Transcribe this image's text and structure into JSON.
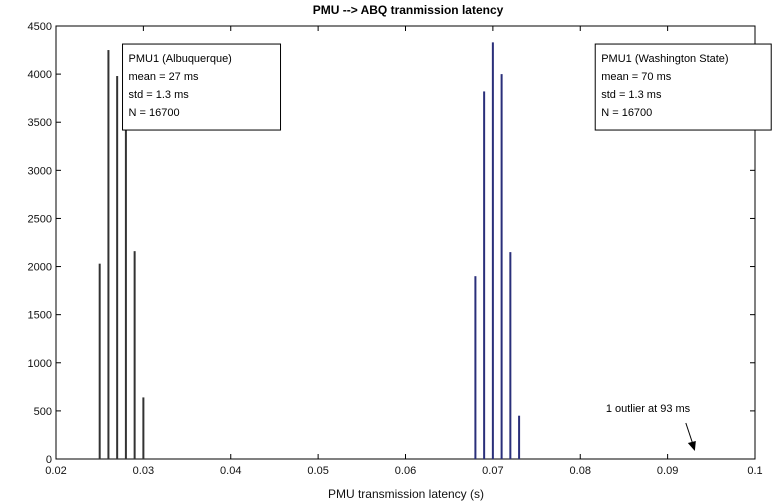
{
  "chart_data": {
    "type": "bar",
    "title": "PMU --> ABQ tranmission latency",
    "xlabel": "PMU transmission latency (s)",
    "ylabel": "",
    "xlim": [
      0.02,
      0.1
    ],
    "ylim": [
      0,
      4500
    ],
    "xticks": [
      0.02,
      0.03,
      0.04,
      0.05,
      0.06,
      0.07,
      0.08,
      0.09,
      0.1
    ],
    "xtick_labels": [
      "0.02",
      "0.03",
      "0.04",
      "0.05",
      "0.06",
      "0.07",
      "0.08",
      "0.09",
      "0.1"
    ],
    "yticks": [
      0,
      500,
      1000,
      1500,
      2000,
      2500,
      3000,
      3500,
      4000,
      4500
    ],
    "ytick_labels": [
      "0",
      "500",
      "1000",
      "1500",
      "2000",
      "2500",
      "3000",
      "3500",
      "4000",
      "4500"
    ],
    "grid": false,
    "series": [
      {
        "name": "PMU1 (Albuquerque)",
        "color": "#333333",
        "x": [
          0.025,
          0.026,
          0.027,
          0.028,
          0.029,
          0.03
        ],
        "values": [
          2030,
          4250,
          3980,
          3640,
          2160,
          640
        ]
      },
      {
        "name": "PMU1 (Washington State)",
        "color": "#2a2f7a",
        "x": [
          0.068,
          0.069,
          0.07,
          0.071,
          0.072,
          0.073
        ],
        "values": [
          1900,
          3820,
          4330,
          4000,
          2150,
          450
        ]
      }
    ],
    "annotations": [
      {
        "anchor_x": 0.0283,
        "anchor_y": 3980,
        "lines": [
          "PMU1 (Albuquerque)",
          "mean = 27 ms",
          "std = 1.3 ms",
          "N = 16700"
        ]
      },
      {
        "anchor_x": 0.0824,
        "anchor_y": 3980,
        "lines": [
          "PMU1 (Washington State)",
          "mean = 70 ms",
          "std = 1.3 ms",
          "N = 16700"
        ]
      }
    ],
    "outlier_note": {
      "text": "1 outlier at 93 ms",
      "x": 0.093,
      "y": 0
    }
  }
}
